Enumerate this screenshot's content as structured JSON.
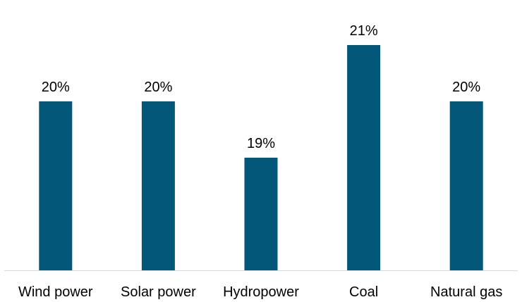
{
  "chart_data": {
    "type": "bar",
    "categories": [
      "Wind power",
      "Solar power",
      "Hydropower",
      "Coal",
      "Natural gas"
    ],
    "values": [
      20,
      20,
      19,
      21,
      20
    ],
    "data_labels": [
      "20%",
      "20%",
      "19%",
      "21%",
      "20%"
    ],
    "title": "",
    "xlabel": "",
    "ylabel": "",
    "grid": false,
    "legend": "none",
    "bar_color": "#03587A",
    "axis_color": "#D9D9D9"
  }
}
